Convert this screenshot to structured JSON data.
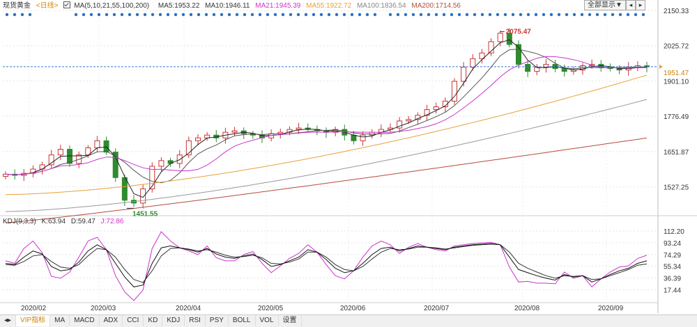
{
  "legend": {
    "name": "现货黄金",
    "period": "<日线>",
    "ma_group": "MA(5,10,21,55,100,200)",
    "items": [
      {
        "label": "MA5:1953.22",
        "color": "#333333"
      },
      {
        "label": "MA10:1946.11",
        "color": "#333333"
      },
      {
        "label": "MA21:1945.39",
        "color": "#cc33cc"
      },
      {
        "label": "MA55:1922.72",
        "color": "#e8a13a"
      },
      {
        "label": "MA100:1836.54",
        "color": "#888888"
      },
      {
        "label": "MA200:1714.56",
        "color": "#b84a3a"
      }
    ]
  },
  "controls": {
    "range_label": "全部显示▼",
    "prev": "◂",
    "next": "▸"
  },
  "kdj_legend": {
    "label": "KDJ(9,3,3)",
    "items": [
      {
        "label": "K:63.94",
        "color": "#333333"
      },
      {
        "label": "D:59.47",
        "color": "#333333"
      },
      {
        "label": "J:72.86",
        "color": "#cc33cc"
      }
    ]
  },
  "price_axis": {
    "ticks": [
      "2150.33",
      "2025.72",
      "1901.10",
      "1776.49",
      "1651.87",
      "1527.25"
    ],
    "current": "1951.47"
  },
  "kdj_axis": {
    "ticks": [
      "112.20",
      "93.24",
      "74.29",
      "55.34",
      "36.39",
      "17.44"
    ]
  },
  "annotations": {
    "high": "2075.47",
    "low": "1451.55"
  },
  "tabs": [
    "VIP指标",
    "MA",
    "MACD",
    "ADX",
    "CCI",
    "KD",
    "KDJ",
    "RSI",
    "PSY",
    "BOLL",
    "VOL",
    "设置"
  ],
  "active_tab": "VIP指标",
  "colors": {
    "up": "#cc3333",
    "down": "#2e8b2e",
    "dots": "#2b6fc0",
    "grid": "#e3e3e3"
  },
  "chart_data": {
    "type": "candlestick",
    "x_labels": [
      "2020/02",
      "2020/03",
      "2020/04",
      "2020/05",
      "2020/06",
      "2020/07",
      "2020/08",
      "2020/09"
    ],
    "y_range": [
      1450,
      2150.33
    ],
    "series": [
      {
        "name": "MA5",
        "last": 1953.22
      },
      {
        "name": "MA10",
        "last": 1946.11
      },
      {
        "name": "MA21",
        "last": 1945.39
      },
      {
        "name": "MA55",
        "last": 1922.72
      },
      {
        "name": "MA100",
        "last": 1836.54
      },
      {
        "name": "MA200",
        "last": 1714.56
      }
    ],
    "close_path": [
      1572,
      1568,
      1575,
      1590,
      1605,
      1640,
      1660,
      1610,
      1640,
      1665,
      1690,
      1650,
      1560,
      1480,
      1470,
      1520,
      1600,
      1620,
      1610,
      1640,
      1690,
      1700,
      1710,
      1700,
      1720,
      1725,
      1715,
      1710,
      1700,
      1715,
      1720,
      1730,
      1735,
      1730,
      1725,
      1720,
      1730,
      1710,
      1690,
      1710,
      1720,
      1730,
      1735,
      1760,
      1765,
      1780,
      1800,
      1810,
      1830,
      1900,
      1950,
      1980,
      2000,
      2040,
      2070,
      2030,
      1960,
      1935,
      1950,
      1960,
      1945,
      1935,
      1940,
      1955,
      1960,
      1950,
      1945,
      1940,
      1950,
      1955,
      1951
    ],
    "ma200": [
      1400,
      1700
    ],
    "ma100": [
      1440,
      1836
    ],
    "ma55": [
      1500,
      1922
    ],
    "kdj": {
      "k": [
        60,
        58,
        70,
        80,
        75,
        55,
        48,
        50,
        62,
        80,
        90,
        82,
        60,
        38,
        22,
        25,
        60,
        85,
        88,
        85,
        82,
        78,
        84,
        75,
        70,
        68,
        72,
        75,
        66,
        55,
        58,
        64,
        70,
        82,
        78,
        66,
        52,
        45,
        48,
        60,
        74,
        84,
        86,
        80,
        84,
        88,
        86,
        84,
        82,
        86,
        88,
        90,
        91,
        92,
        90,
        70,
        50,
        45,
        40,
        36,
        33,
        42,
        38,
        40,
        30,
        35,
        42,
        48,
        52,
        60,
        64
      ],
      "d": [
        58,
        57,
        63,
        72,
        74,
        63,
        54,
        52,
        58,
        72,
        84,
        82,
        70,
        50,
        34,
        29,
        48,
        72,
        84,
        85,
        83,
        80,
        82,
        78,
        73,
        70,
        71,
        73,
        69,
        60,
        59,
        62,
        67,
        78,
        78,
        70,
        58,
        50,
        48,
        55,
        67,
        78,
        84,
        82,
        83,
        86,
        86,
        85,
        83,
        85,
        87,
        89,
        90,
        91,
        90,
        78,
        60,
        52,
        46,
        40,
        36,
        40,
        39,
        40,
        34,
        35,
        40,
        45,
        50,
        57,
        59
      ],
      "j": [
        64,
        60,
        84,
        96,
        77,
        39,
        36,
        46,
        70,
        96,
        102,
        82,
        40,
        14,
        0,
        17,
        84,
        111,
        96,
        85,
        80,
        74,
        88,
        69,
        64,
        64,
        74,
        79,
        60,
        45,
        56,
        68,
        76,
        90,
        78,
        58,
        40,
        35,
        48,
        70,
        88,
        96,
        90,
        76,
        86,
        92,
        86,
        82,
        80,
        88,
        90,
        92,
        93,
        94,
        90,
        54,
        30,
        31,
        28,
        28,
        27,
        46,
        36,
        40,
        22,
        35,
        46,
        54,
        56,
        68,
        73
      ]
    }
  }
}
